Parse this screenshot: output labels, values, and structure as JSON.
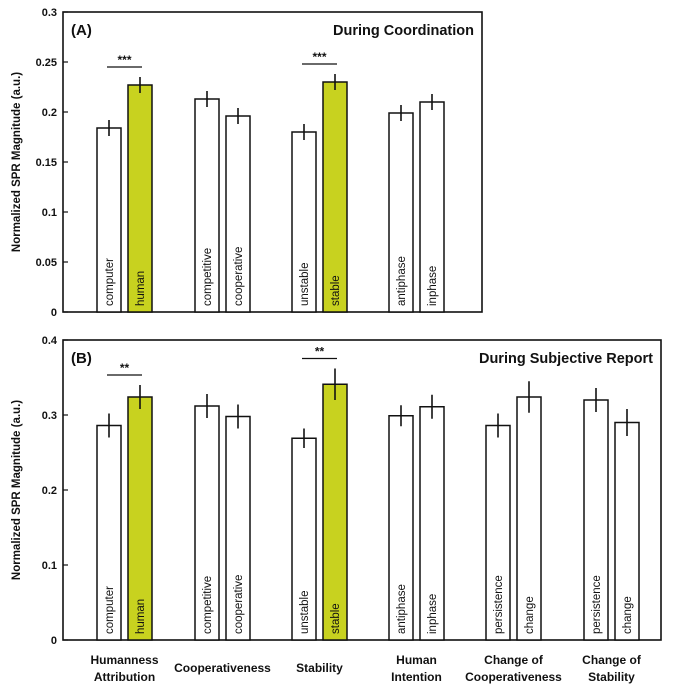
{
  "colors": {
    "highlight": "#c8d21f",
    "bar": "#ffffff",
    "stroke": "#111111"
  },
  "chart_data": [
    {
      "type": "bar",
      "panel": "(A)",
      "title": "During Coordination",
      "ylabel": "Normalized SPR Magnitude (a.u.)",
      "ylim": [
        0,
        0.3
      ],
      "yticks": [
        "0",
        "0.05",
        "0.1",
        "0.15",
        "0.2",
        "0.25",
        "0.3"
      ],
      "groups": [
        {
          "bars": [
            {
              "label": "computer",
              "value": 0.184,
              "error": 0.008,
              "highlight": false
            },
            {
              "label": "human",
              "value": 0.227,
              "error": 0.008,
              "highlight": true
            }
          ],
          "sig": "***"
        },
        {
          "bars": [
            {
              "label": "competitive",
              "value": 0.213,
              "error": 0.008,
              "highlight": false
            },
            {
              "label": "cooperative",
              "value": 0.196,
              "error": 0.008,
              "highlight": false
            }
          ]
        },
        {
          "bars": [
            {
              "label": "unstable",
              "value": 0.18,
              "error": 0.008,
              "highlight": false
            },
            {
              "label": "stable",
              "value": 0.23,
              "error": 0.008,
              "highlight": true
            }
          ],
          "sig": "***"
        },
        {
          "bars": [
            {
              "label": "antiphase",
              "value": 0.199,
              "error": 0.008,
              "highlight": false
            },
            {
              "label": "inphase",
              "value": 0.21,
              "error": 0.008,
              "highlight": false
            }
          ]
        }
      ]
    },
    {
      "type": "bar",
      "panel": "(B)",
      "title": "During Subjective Report",
      "ylabel": "Normalized SPR Magnitude (a.u.)",
      "ylim": [
        0,
        0.4
      ],
      "yticks": [
        "0",
        "0.1",
        "0.2",
        "0.3",
        "0.4"
      ],
      "groups": [
        {
          "bars": [
            {
              "label": "computer",
              "value": 0.286,
              "error": 0.016,
              "highlight": false
            },
            {
              "label": "human",
              "value": 0.324,
              "error": 0.016,
              "highlight": true
            }
          ],
          "sig": "**"
        },
        {
          "bars": [
            {
              "label": "competitive",
              "value": 0.312,
              "error": 0.016,
              "highlight": false
            },
            {
              "label": "cooperative",
              "value": 0.298,
              "error": 0.016,
              "highlight": false
            }
          ]
        },
        {
          "bars": [
            {
              "label": "unstable",
              "value": 0.269,
              "error": 0.013,
              "highlight": false
            },
            {
              "label": "stable",
              "value": 0.341,
              "error": 0.021,
              "highlight": true
            }
          ],
          "sig": "**"
        },
        {
          "bars": [
            {
              "label": "antiphase",
              "value": 0.299,
              "error": 0.014,
              "highlight": false
            },
            {
              "label": "inphase",
              "value": 0.311,
              "error": 0.016,
              "highlight": false
            }
          ]
        },
        {
          "bars": [
            {
              "label": "persistence",
              "value": 0.286,
              "error": 0.016,
              "highlight": false
            },
            {
              "label": "change",
              "value": 0.324,
              "error": 0.021,
              "highlight": false
            }
          ]
        },
        {
          "bars": [
            {
              "label": "persistence",
              "value": 0.32,
              "error": 0.016,
              "highlight": false
            },
            {
              "label": "change",
              "value": 0.29,
              "error": 0.018,
              "highlight": false
            }
          ]
        }
      ]
    }
  ],
  "group_labels": [
    [
      "Humanness",
      "Attribution"
    ],
    [
      "Cooperativeness"
    ],
    [
      "Stability"
    ],
    [
      "Human",
      "Intention"
    ],
    [
      "Change of",
      "Cooperativeness"
    ],
    [
      "Change of",
      "Stability"
    ]
  ]
}
